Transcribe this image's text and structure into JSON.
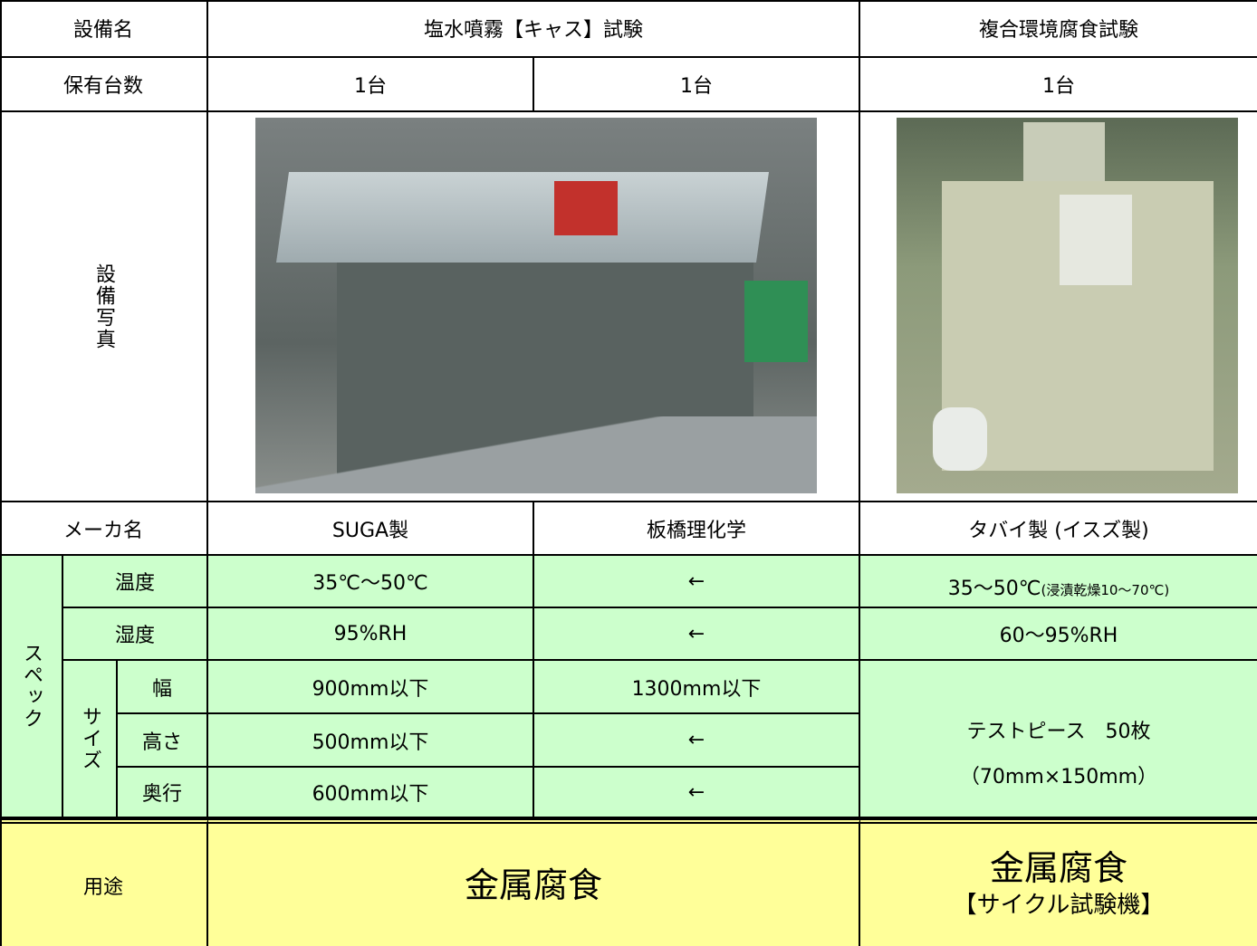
{
  "header": {
    "label": "設備名",
    "items": [
      "塩水噴霧【キャス】試験",
      "複合環境腐食試験"
    ]
  },
  "count": {
    "label": "保有台数",
    "values": [
      "1台",
      "1台",
      "1台"
    ]
  },
  "photo": {
    "label": "設備写真"
  },
  "maker": {
    "label": "メーカ名",
    "values": [
      "SUGA製",
      "板橋理化学",
      "タバイ製 (イスズ製)"
    ]
  },
  "spec": {
    "label": "スペック",
    "temperature": {
      "label": "温度",
      "values": [
        "35℃～50℃",
        "←"
      ],
      "cycle": {
        "main": "35～50℃",
        "note": "(浸漬乾燥10～70℃)"
      }
    },
    "humidity": {
      "label": "湿度",
      "values": [
        "95%RH",
        "←",
        "60～95%RH"
      ]
    },
    "size": {
      "label": "サイズ",
      "width": {
        "label": "幅",
        "values": [
          "900mm以下",
          "1300mm以下"
        ]
      },
      "height": {
        "label": "高さ",
        "values": [
          "500mm以下",
          "←"
        ]
      },
      "depth": {
        "label": "奥行",
        "values": [
          "600mm以下",
          "←"
        ]
      },
      "cycle": [
        "テストピース　50枚",
        "（70mm×150mm）"
      ]
    }
  },
  "use": {
    "label": "用途",
    "value": "金属腐食",
    "cycle": [
      "金属腐食",
      "【サイクル試験機】"
    ]
  }
}
